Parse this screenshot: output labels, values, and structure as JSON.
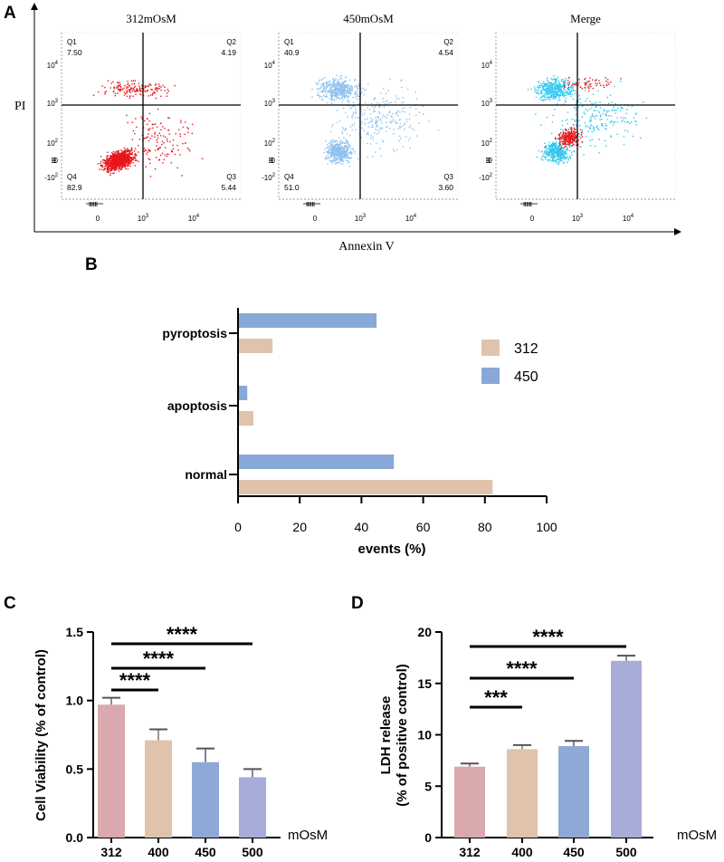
{
  "panel_letters": {
    "a": "A",
    "b": "B",
    "c": "C",
    "d": "D"
  },
  "flow": {
    "axis_y_label": "PI",
    "axis_x_label": "Annexin V",
    "x_ticks": [
      "0",
      "10",
      "10"
    ],
    "x_tick_exps": [
      "",
      "3",
      "4"
    ],
    "y_ticks": [
      "10",
      "10",
      "10",
      "0",
      "-10"
    ],
    "y_tick_exps": [
      "4",
      "3",
      "2",
      "",
      "2"
    ],
    "colors": {
      "c312": "#e8161b",
      "c450": "#8ec0ee",
      "merge_cyan": "#2fc7ee"
    },
    "plots": [
      {
        "title": "312mOsM",
        "quadrants": {
          "q1": "Q1",
          "q2": "Q2",
          "q3": "Q3",
          "q4": "Q4"
        },
        "values": {
          "q1": "7.50",
          "q2": "4.19",
          "q3": "5.44",
          "q4": "82.9"
        }
      },
      {
        "title": "450mOsM",
        "quadrants": {
          "q1": "Q1",
          "q2": "Q2",
          "q3": "Q3",
          "q4": "Q4"
        },
        "values": {
          "q1": "40.9",
          "q2": "4.54",
          "q3": "3.60",
          "q4": "51.0"
        }
      },
      {
        "title": "Merge"
      }
    ]
  },
  "chart_data": [
    {
      "type": "bar",
      "orientation": "horizontal",
      "categories": [
        "pyroptosis",
        "apoptosis",
        "normal"
      ],
      "series": [
        {
          "name": "450",
          "color": "#88a8d8",
          "values": [
            44.9,
            3.0,
            50.5
          ]
        },
        {
          "name": "312",
          "color": "#dfc3ac",
          "values": [
            11.2,
            5.0,
            82.5
          ]
        }
      ],
      "legend_order": [
        "312",
        "450"
      ],
      "xlabel": "events (%)",
      "xlim": [
        0,
        100
      ],
      "xticks": [
        0,
        20,
        40,
        60,
        80,
        100
      ]
    },
    {
      "type": "bar",
      "categories": [
        "312",
        "400",
        "450",
        "500"
      ],
      "values": [
        0.97,
        0.71,
        0.55,
        0.44
      ],
      "errors": [
        0.05,
        0.08,
        0.1,
        0.06
      ],
      "colors": [
        "#d9a9ad",
        "#dfc3ac",
        "#8fa8d6",
        "#a7acd8"
      ],
      "ylabel": "Cell Viability (% of control)",
      "xlabel": "mOsM",
      "ylim": [
        0,
        1.5
      ],
      "yticks": [
        "0.0",
        "0.5",
        "1.0",
        "1.5"
      ],
      "significance": [
        {
          "from": "312",
          "to": "400",
          "label": "****"
        },
        {
          "from": "312",
          "to": "450",
          "label": "****"
        },
        {
          "from": "312",
          "to": "500",
          "label": "****"
        }
      ]
    },
    {
      "type": "bar",
      "categories": [
        "312",
        "400",
        "450",
        "500"
      ],
      "values": [
        6.9,
        8.6,
        8.9,
        17.2
      ],
      "errors": [
        0.3,
        0.4,
        0.5,
        0.5
      ],
      "colors": [
        "#d9a9ad",
        "#dfc3ac",
        "#8fa8d6",
        "#a7acd8"
      ],
      "ylabel_line1": "LDH release",
      "ylabel_line2": "(% of positive control)",
      "xlabel": "mOsM",
      "ylim": [
        0,
        20
      ],
      "yticks": [
        "0",
        "5",
        "10",
        "15",
        "20"
      ],
      "significance": [
        {
          "from": "312",
          "to": "400",
          "label": "***"
        },
        {
          "from": "312",
          "to": "450",
          "label": "****"
        },
        {
          "from": "312",
          "to": "500",
          "label": "****"
        }
      ]
    }
  ]
}
